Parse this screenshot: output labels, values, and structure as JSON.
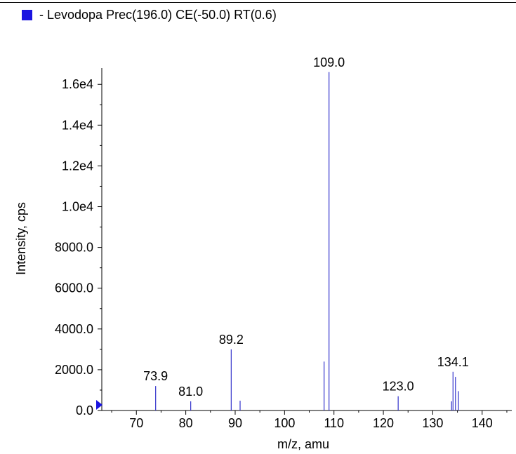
{
  "legend": {
    "label": "- Levodopa Prec(196.0) CE(-50.0) RT(0.6)",
    "color": "#1a14e0"
  },
  "chart_data": {
    "type": "bar",
    "xlabel": "m/z, amu",
    "ylabel": "Intensity, cps",
    "xlim": [
      63,
      146
    ],
    "ylim": [
      0,
      16800
    ],
    "x_ticks": [
      70,
      80,
      90,
      100,
      110,
      120,
      130,
      140
    ],
    "x_tick_labels": [
      "70",
      "80",
      "90",
      "100",
      "110",
      "120",
      "130",
      "140"
    ],
    "y_ticks": [
      0,
      2000,
      4000,
      6000,
      8000,
      10000,
      12000,
      14000,
      16000
    ],
    "y_tick_labels": [
      "0.0",
      "2000.0",
      "4000.0",
      "6000.0",
      "8000.0",
      "1.0e4",
      "1.2e4",
      "1.4e4",
      "1.6e4"
    ],
    "series": [
      {
        "color": "#3333cc",
        "peaks": [
          {
            "x": 73.9,
            "y": 1200,
            "label": "73.9"
          },
          {
            "x": 81.0,
            "y": 450,
            "label": "81.0"
          },
          {
            "x": 89.2,
            "y": 3000,
            "label": "89.2"
          },
          {
            "x": 91.0,
            "y": 480,
            "label": ""
          },
          {
            "x": 108.0,
            "y": 2400,
            "label": ""
          },
          {
            "x": 109.0,
            "y": 16600,
            "label": "109.0"
          },
          {
            "x": 123.0,
            "y": 700,
            "label": "123.0"
          },
          {
            "x": 133.8,
            "y": 450,
            "label": ""
          },
          {
            "x": 134.1,
            "y": 1900,
            "label": "134.1"
          },
          {
            "x": 134.6,
            "y": 1650,
            "label": ""
          },
          {
            "x": 135.2,
            "y": 950,
            "label": ""
          }
        ]
      }
    ],
    "marker_color": "#1a14e0"
  }
}
